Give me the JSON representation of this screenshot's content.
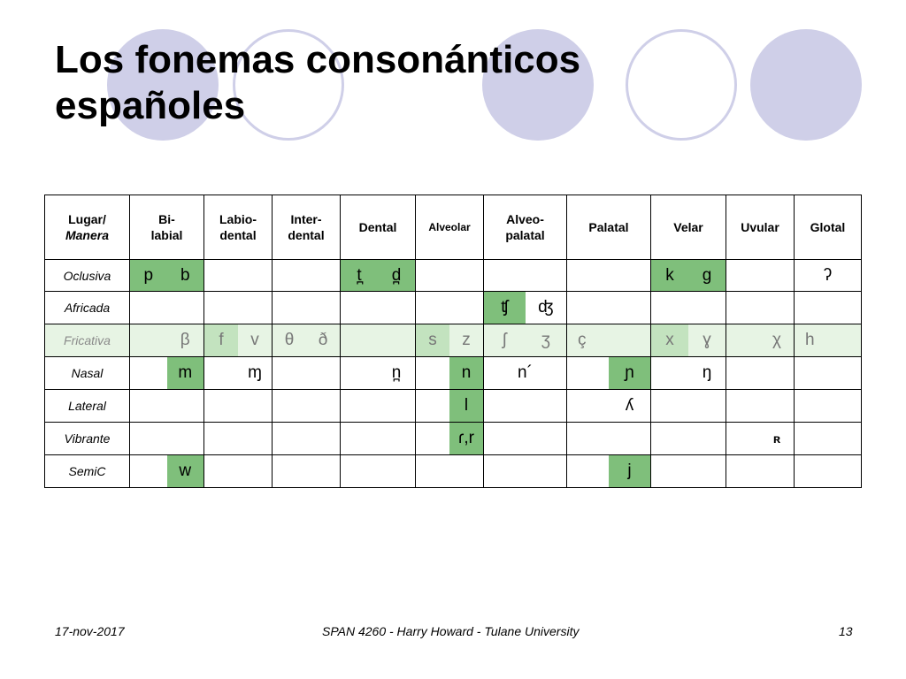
{
  "slide": {
    "title_line1": "Los fonemas consonánticos",
    "title_line2": "españoles"
  },
  "table": {
    "header_corner_1": "Lugar/",
    "header_corner_2": "Manera",
    "columns": [
      "Bi-labial",
      "Labio-dental",
      "Inter-dental",
      "Dental",
      "Alveolar",
      "Alveo-palatal",
      "Palatal",
      "Velar",
      "Uvular",
      "Glotal"
    ],
    "rows": [
      {
        "label": "Oclusiva",
        "bilabial_a": "p",
        "bilabial_b": "b",
        "dental_a": "t̪",
        "dental_b": "d̪",
        "velar_a": "k",
        "velar_b": "g",
        "glotal": "ʔ"
      },
      {
        "label": "Africada",
        "alveopalatal_a": "ʧ",
        "alveopalatal_b": "ʤ"
      },
      {
        "label": "Fricativa",
        "bilabial": "β",
        "labiodental_a": "f",
        "labiodental_b": "v",
        "interdental_a": "θ",
        "interdental_b": "ð",
        "alveolar_a": "s",
        "alveolar_b": "z",
        "alveopalatal_a": "ʃ",
        "alveopalatal_b": "ʒ",
        "palatal": "ç",
        "velar_a": "x",
        "velar_b": "ɣ",
        "uvular": "χ",
        "glotal": "h"
      },
      {
        "label": "Nasal",
        "bilabial": "m",
        "labiodental": "ɱ",
        "dental": "n̪",
        "alveolar": "n",
        "alveopalatal": "n´",
        "palatal": "ɲ",
        "velar": "ŋ"
      },
      {
        "label": "Lateral",
        "alveolar": "l",
        "palatal": "ʎ"
      },
      {
        "label": "Vibrante",
        "alveolar": "ɾ,r",
        "uvular": "ʀ"
      },
      {
        "label": "SemiC",
        "bilabial": "w",
        "palatal": "j"
      }
    ]
  },
  "footer": {
    "date": "17-nov-2017",
    "course": "SPAN 4260 - Harry Howard - Tulane University",
    "page": "13"
  },
  "colors": {
    "circle": "#cfcfe8",
    "green": "#7fbf7b",
    "light_green": "#c3e3bf",
    "highlight_row": "#e7f4e4"
  }
}
